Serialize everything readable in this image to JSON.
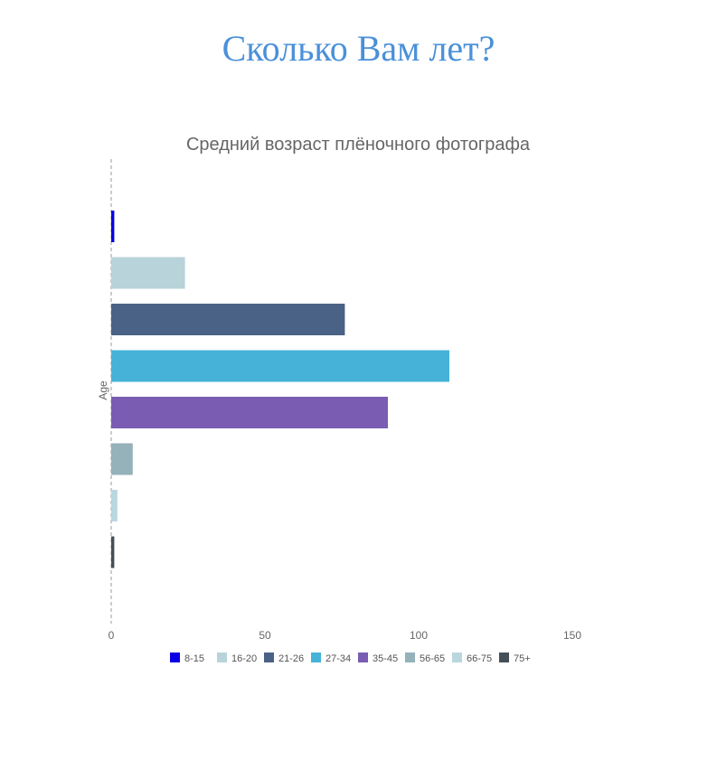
{
  "page": {
    "heading": "Сколько Вам лет?"
  },
  "chart_data": {
    "type": "bar",
    "orientation": "horizontal",
    "title": "Средний возраст плёночного фотографа",
    "xlabel": "",
    "ylabel": "Age",
    "xlim": [
      0,
      150
    ],
    "xticks": [
      0,
      50,
      100,
      150
    ],
    "grid": false,
    "legend": "bottom",
    "categories": [
      "8-15",
      "16-20",
      "21-26",
      "27-34",
      "35-45",
      "56-65",
      "66-75",
      "75+"
    ],
    "values": [
      1,
      24,
      76,
      110,
      90,
      7,
      2,
      1
    ],
    "colors": [
      "#0a00e6",
      "#b8d3d9",
      "#4a6285",
      "#46b2d8",
      "#7a5db3",
      "#95b1b9",
      "#b9d7de",
      "#454f57"
    ]
  }
}
